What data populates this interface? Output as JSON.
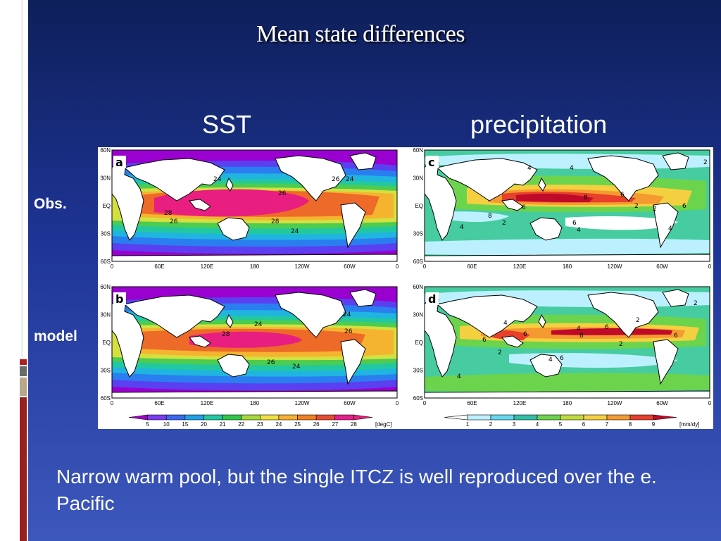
{
  "slide": {
    "title": "Mean state differences",
    "caption": "Narrow warm pool, but the single ITCZ is well reproduced over the e. Pacific"
  },
  "columns": {
    "sst": "SST",
    "precip": "precipitation"
  },
  "rows": {
    "obs": "Obs.",
    "model": "model"
  },
  "axes": {
    "lon_ticks": [
      "0",
      "60E",
      "120E",
      "180",
      "120W",
      "60W",
      "0"
    ],
    "lat_ticks": [
      "60N",
      "30N",
      "EQ",
      "30S",
      "60S"
    ]
  },
  "panels": [
    {
      "letter": "a",
      "field": "sst",
      "contour_labels": [
        "24",
        "26",
        "24",
        "26",
        "28",
        "26",
        "28",
        "24"
      ]
    },
    {
      "letter": "b",
      "field": "sst",
      "contour_labels": [
        "24",
        "28",
        "24",
        "26",
        "26",
        "24"
      ]
    },
    {
      "letter": "c",
      "field": "precip",
      "contour_labels": [
        "4",
        "4",
        "8",
        "2",
        "6",
        "2",
        "6",
        "4",
        "8",
        "2",
        "6",
        "4",
        "6",
        "4",
        "2"
      ]
    },
    {
      "letter": "d",
      "field": "precip",
      "contour_labels": [
        "4",
        "6",
        "4",
        "6",
        "8",
        "2",
        "2",
        "6",
        "4",
        "6",
        "2",
        "4",
        "2",
        "6"
      ]
    }
  ],
  "colorbars": {
    "sst": {
      "ticks": [
        "5",
        "10",
        "15",
        "20",
        "21",
        "22",
        "23",
        "24",
        "25",
        "26",
        "27",
        "28"
      ],
      "unit": "[degC]",
      "colors": [
        "#a000c8",
        "#7a3cf0",
        "#3a68f0",
        "#1ea0e6",
        "#20c8a0",
        "#30c84a",
        "#a6d83a",
        "#f0e040",
        "#f8b030",
        "#f08020",
        "#e84c30",
        "#e81e90",
        "#e81e78"
      ]
    },
    "precip": {
      "ticks": [
        "1",
        "2",
        "3",
        "4",
        "5",
        "6",
        "7",
        "8",
        "9"
      ],
      "unit": "[mm/dy]",
      "colors": [
        "#ffffff",
        "#bdf0ff",
        "#64d8f0",
        "#30c0a8",
        "#6cd44c",
        "#c0dc3c",
        "#f4d040",
        "#f49a30",
        "#e8402a",
        "#c00a2a"
      ]
    }
  },
  "colors": {
    "land": "#ffffff",
    "sst_bands": [
      "#9a00d0",
      "#5a40f0",
      "#2a7ef0",
      "#20b4e0",
      "#22c8a0",
      "#4ccc50",
      "#d4e040",
      "#f4b430",
      "#ee6a28",
      "#e81e80"
    ],
    "precip_bg": "#46cca0"
  }
}
